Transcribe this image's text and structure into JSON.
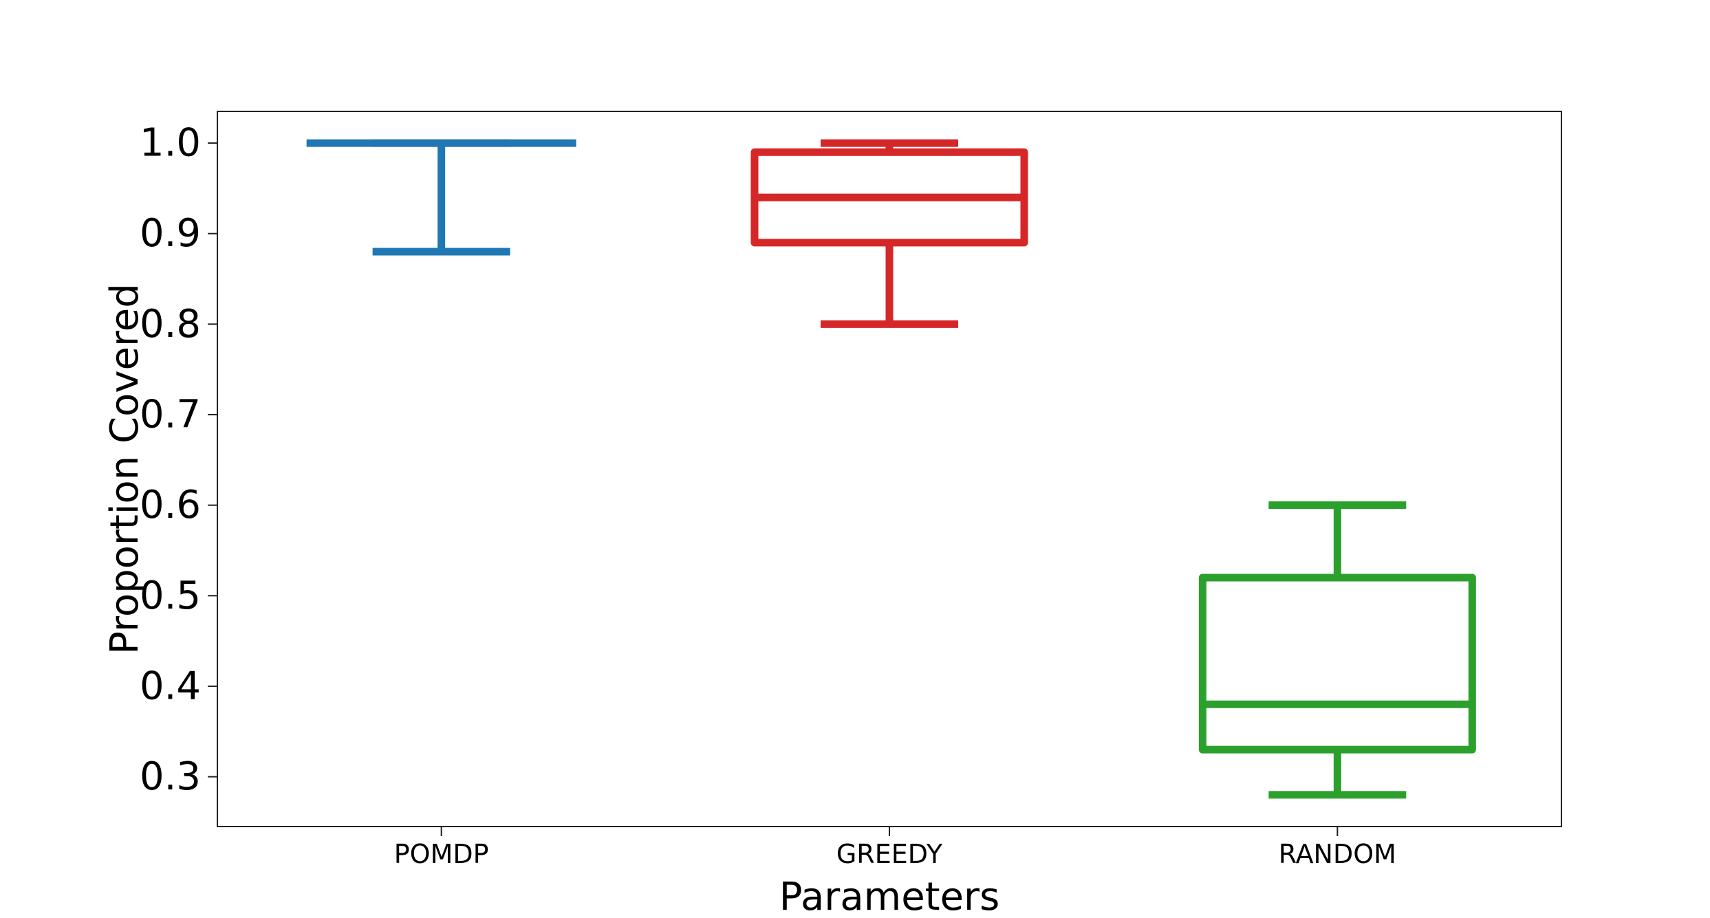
{
  "chart_data": {
    "type": "boxplot",
    "title": "",
    "xlabel": "Parameters",
    "ylabel": "Proportion Covered",
    "ylim": [
      0.245,
      1.035
    ],
    "yticks": [
      0.3,
      0.4,
      0.5,
      0.6,
      0.7,
      0.8,
      0.9,
      1.0
    ],
    "ytick_labels": [
      "0.3",
      "0.4",
      "0.5",
      "0.6",
      "0.7",
      "0.8",
      "0.9",
      "1.0"
    ],
    "grid": false,
    "legend": "none",
    "categories": [
      "POMDP",
      "GREEDY",
      "RANDOM"
    ],
    "boxes": [
      {
        "category": "POMDP",
        "color": "#1f77b4",
        "whisker_low": 0.88,
        "q1": 1.0,
        "median": 1.0,
        "q3": 1.0,
        "whisker_high": 1.0
      },
      {
        "category": "GREEDY",
        "color": "#d62728",
        "whisker_low": 0.8,
        "q1": 0.89,
        "median": 0.94,
        "q3": 0.99,
        "whisker_high": 1.0
      },
      {
        "category": "RANDOM",
        "color": "#2ca02c",
        "whisker_low": 0.28,
        "q1": 0.33,
        "median": 0.38,
        "q3": 0.52,
        "whisker_high": 0.6
      }
    ]
  }
}
